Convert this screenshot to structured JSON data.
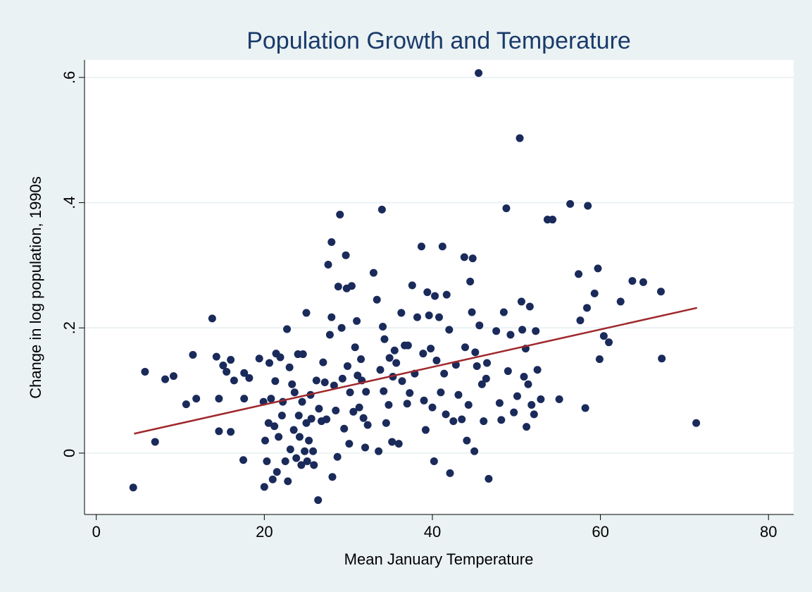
{
  "chart_data": {
    "type": "scatter",
    "title": "Population Growth and Temperature",
    "x_label": "Mean January Temperature",
    "y_label": "Change in log population, 1990s",
    "xlim": [
      -1.4,
      83
    ],
    "ylim": [
      -0.098,
      0.628
    ],
    "xticks": [
      0,
      20,
      40,
      60,
      80
    ],
    "yticks": [
      0,
      {
        "value": 0.2,
        "label": ".2"
      },
      {
        "value": 0.4,
        "label": ".4"
      },
      {
        "value": 0.6,
        "label": ".6"
      }
    ],
    "grid": true,
    "series": [
      {
        "type": "scatter",
        "color": "#1a2a5a",
        "x": [
          4.4,
          5.8,
          7.0,
          8.2,
          9.2,
          10.7,
          11.5,
          11.9,
          13.8,
          14.3,
          14.6,
          14.6,
          15.1,
          15.5,
          16.0,
          16.0,
          16.4,
          17.5,
          17.6,
          17.6,
          18.2,
          19.4,
          19.9,
          20.0,
          20.1,
          20.3,
          20.5,
          20.6,
          20.8,
          21.0,
          21.2,
          21.3,
          21.4,
          21.5,
          21.7,
          21.9,
          22.1,
          22.2,
          22.5,
          22.7,
          22.8,
          23.0,
          23.1,
          23.3,
          23.5,
          23.6,
          23.8,
          24.0,
          24.1,
          24.2,
          24.4,
          24.5,
          24.6,
          24.8,
          25.0,
          25.0,
          25.1,
          25.3,
          25.5,
          25.6,
          25.8,
          25.9,
          26.2,
          26.4,
          26.5,
          26.8,
          27.0,
          27.2,
          27.4,
          27.6,
          27.8,
          28.0,
          28.0,
          28.1,
          28.3,
          28.5,
          28.7,
          28.8,
          29.0,
          29.2,
          29.3,
          29.5,
          29.7,
          29.8,
          29.9,
          30.1,
          30.2,
          30.4,
          30.6,
          30.8,
          31.0,
          31.1,
          31.3,
          31.5,
          31.6,
          31.8,
          32.0,
          32.1,
          32.3,
          33.0,
          33.4,
          33.6,
          33.8,
          34.0,
          34.1,
          34.2,
          34.3,
          34.5,
          34.8,
          34.9,
          35.2,
          35.3,
          35.5,
          35.7,
          36.0,
          36.3,
          36.4,
          36.7,
          37.0,
          37.1,
          37.3,
          37.6,
          37.9,
          38.2,
          38.7,
          38.9,
          39.0,
          39.2,
          39.4,
          39.6,
          39.8,
          40.0,
          40.2,
          40.3,
          40.5,
          40.8,
          41.0,
          41.2,
          41.4,
          41.6,
          41.7,
          42.0,
          42.1,
          42.5,
          42.8,
          43.1,
          43.5,
          43.8,
          43.9,
          44.1,
          44.3,
          44.5,
          44.7,
          44.8,
          45.0,
          45.1,
          45.3,
          45.5,
          45.6,
          45.9,
          46.1,
          46.4,
          46.5,
          46.7,
          47.6,
          48.0,
          48.2,
          48.5,
          48.8,
          49.0,
          49.3,
          49.7,
          50.1,
          50.4,
          50.6,
          50.7,
          50.9,
          51.1,
          51.2,
          51.4,
          51.6,
          51.8,
          52.1,
          52.3,
          52.5,
          52.9,
          53.7,
          54.3,
          55.1,
          56.4,
          57.4,
          57.6,
          58.2,
          58.4,
          58.5,
          59.3,
          59.7,
          59.9,
          60.4,
          61.0,
          62.4,
          63.8,
          65.1,
          67.2,
          67.3,
          71.4
        ],
        "values": [
          -0.055,
          0.13,
          0.018,
          0.118,
          0.123,
          0.078,
          0.157,
          0.087,
          0.215,
          0.154,
          0.087,
          0.035,
          0.14,
          0.13,
          0.149,
          0.034,
          0.116,
          -0.011,
          0.128,
          0.087,
          0.12,
          0.151,
          0.082,
          -0.054,
          0.02,
          -0.013,
          0.048,
          0.144,
          0.087,
          -0.042,
          0.043,
          0.115,
          0.159,
          -0.03,
          0.026,
          0.153,
          0.06,
          0.082,
          -0.013,
          0.198,
          -0.045,
          0.137,
          0.006,
          0.11,
          0.037,
          0.097,
          -0.008,
          0.158,
          0.06,
          0.026,
          -0.019,
          0.082,
          0.158,
          0.003,
          0.048,
          0.224,
          -0.013,
          0.02,
          0.093,
          0.055,
          0.003,
          -0.019,
          0.116,
          -0.075,
          0.071,
          0.051,
          0.145,
          0.113,
          0.054,
          0.301,
          0.189,
          0.217,
          0.337,
          -0.038,
          0.108,
          0.068,
          -0.006,
          0.266,
          0.381,
          0.2,
          0.119,
          0.039,
          0.316,
          0.263,
          0.139,
          0.015,
          0.097,
          0.267,
          0.066,
          0.169,
          0.211,
          0.124,
          0.073,
          0.15,
          0.116,
          0.056,
          0.009,
          0.098,
          0.045,
          0.288,
          0.245,
          0.003,
          0.133,
          0.389,
          0.202,
          0.099,
          0.182,
          0.048,
          0.077,
          0.152,
          0.018,
          0.122,
          0.164,
          0.144,
          0.015,
          0.224,
          0.115,
          0.172,
          0.079,
          0.172,
          0.096,
          0.268,
          0.127,
          0.217,
          0.33,
          0.159,
          0.084,
          0.037,
          0.257,
          0.22,
          0.167,
          0.073,
          -0.013,
          0.251,
          0.148,
          0.217,
          0.097,
          0.33,
          0.127,
          0.062,
          0.253,
          0.197,
          -0.032,
          0.051,
          0.141,
          0.093,
          0.054,
          0.313,
          0.169,
          0.02,
          0.077,
          0.274,
          0.225,
          0.311,
          0.003,
          0.161,
          0.139,
          0.607,
          0.204,
          0.11,
          0.051,
          0.119,
          0.144,
          -0.041,
          0.195,
          0.08,
          0.053,
          0.225,
          0.391,
          0.131,
          0.189,
          0.065,
          0.091,
          0.503,
          0.242,
          0.197,
          0.122,
          0.167,
          0.042,
          0.11,
          0.234,
          0.077,
          0.062,
          0.195,
          0.133,
          0.086,
          0.373,
          0.373,
          0.086,
          0.398,
          0.286,
          0.212,
          0.072,
          0.232,
          0.395,
          0.255,
          0.295,
          0.15,
          0.187,
          0.177,
          0.242,
          0.275,
          0.273,
          0.258,
          0.151,
          0.048
        ]
      },
      {
        "type": "line",
        "color": "#a0282c",
        "x": [
          4.5,
          71.5
        ],
        "values": [
          0.031,
          0.232
        ]
      }
    ]
  }
}
